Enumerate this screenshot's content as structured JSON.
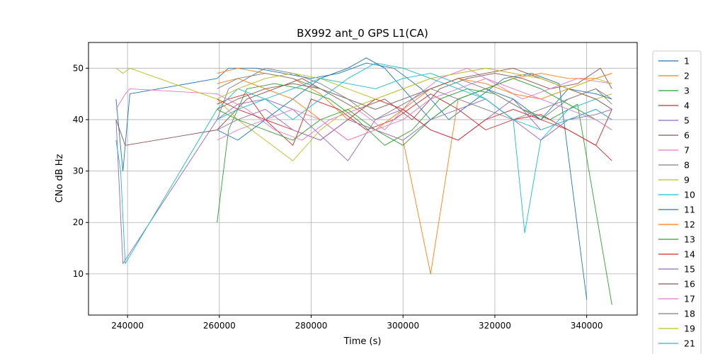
{
  "chart_data": {
    "type": "line",
    "title": "BX992 ant_0 GPS L1(CA)",
    "xlabel": "Time (s)",
    "ylabel": "CNo dB Hz",
    "xlim": [
      231500,
      351000
    ],
    "ylim": [
      2,
      55
    ],
    "xticks": [
      240000,
      260000,
      280000,
      300000,
      320000,
      340000
    ],
    "xtick_labels": [
      "240000",
      "260000",
      "280000",
      "300000",
      "320000",
      "340000"
    ],
    "yticks": [
      10,
      20,
      30,
      40,
      50
    ],
    "ytick_labels": [
      "10",
      "20",
      "30",
      "40",
      "50"
    ],
    "grid": true,
    "legend_position": "right, outside plot",
    "series": [
      {
        "name": "1",
        "color": "#1f77b4",
        "x": [
          237500,
          239000,
          240500,
          259500,
          262000,
          268000,
          274000,
          280000,
          286000,
          292000,
          298000,
          304000,
          310000,
          316000,
          322000,
          328000,
          334000,
          340000
        ],
        "y": [
          44,
          30,
          45,
          48,
          50,
          50,
          49,
          48,
          49,
          51,
          50,
          46,
          40,
          44,
          48,
          49,
          47,
          5
        ]
      },
      {
        "name": "2",
        "color": "#ff7f0e",
        "x": [
          259500,
          264000,
          270000,
          276000,
          282000,
          288000,
          294000,
          300000,
          306000,
          312000,
          318000,
          324000,
          330000,
          336000,
          342000,
          345500
        ],
        "y": [
          49,
          50,
          49,
          48,
          45,
          40,
          38,
          36,
          10,
          44,
          46,
          48,
          49,
          48,
          48,
          49
        ]
      },
      {
        "name": "3",
        "color": "#2ca02c",
        "x": [
          259500,
          262000,
          266000,
          272000,
          278000,
          284000,
          290000,
          296000,
          302000,
          308000,
          314000,
          320000,
          326000,
          332000,
          338000,
          345500
        ],
        "y": [
          20,
          38,
          46,
          47,
          46,
          44,
          40,
          35,
          38,
          44,
          46,
          45,
          42,
          40,
          43,
          4
        ]
      },
      {
        "name": "4",
        "color": "#d62728",
        "x": [
          259500,
          262000,
          266000,
          270000,
          276000,
          280000,
          286000,
          292000,
          298000,
          306000,
          312000,
          318000,
          324000,
          330000,
          336000,
          342000,
          345500
        ],
        "y": [
          43,
          44,
          45,
          40,
          35,
          44,
          42,
          38,
          40,
          45,
          42,
          38,
          40,
          41,
          38,
          35,
          42
        ]
      },
      {
        "name": "5",
        "color": "#9467bd",
        "x": [
          237500,
          239000,
          259500,
          264000,
          270000,
          276000,
          282000,
          288000,
          294000,
          300000,
          306000,
          312000,
          318000,
          324000,
          330000,
          336000,
          342000,
          345500
        ],
        "y": [
          40,
          12,
          40,
          43,
          44,
          42,
          37,
          32,
          40,
          42,
          38,
          36,
          40,
          44,
          38,
          40,
          41,
          42
        ]
      },
      {
        "name": "6",
        "color": "#8c564b",
        "x": [
          237500,
          239500,
          259500,
          266000,
          272000,
          278000,
          284000,
          290000,
          296000,
          302000,
          308000,
          314000,
          320000,
          326000,
          332000,
          338000,
          343000,
          345500
        ],
        "y": [
          40,
          35,
          38,
          44,
          46,
          48,
          45,
          42,
          44,
          40,
          46,
          48,
          49,
          48,
          46,
          47,
          50,
          46
        ]
      },
      {
        "name": "7",
        "color": "#e377c2",
        "x": [
          237500,
          239500,
          240500,
          259500,
          266000,
          272000,
          278000,
          284000,
          290000,
          296000,
          302000,
          308000,
          314000,
          320000,
          326000,
          332000,
          338000,
          345500
        ],
        "y": [
          42,
          45,
          46,
          45,
          42,
          38,
          36,
          40,
          42,
          38,
          44,
          48,
          50,
          47,
          44,
          46,
          48,
          47
        ]
      },
      {
        "name": "8",
        "color": "#7f7f7f",
        "x": [
          259500,
          262000,
          266000,
          270000,
          276000,
          282000,
          288000,
          294000,
          300000,
          306000,
          312000,
          318000,
          324000,
          330000,
          336000,
          342000,
          345500
        ],
        "y": [
          40,
          46,
          48,
          50,
          49,
          47,
          44,
          40,
          43,
          46,
          48,
          46,
          43,
          40,
          44,
          46,
          43
        ]
      },
      {
        "name": "9",
        "color": "#bcbd22",
        "x": [
          237500,
          239000,
          240500,
          259500,
          264000,
          270000,
          276000,
          282000,
          288000,
          294000,
          300000,
          306000,
          312000,
          318000,
          324000,
          330000,
          336000,
          342000,
          345500
        ],
        "y": [
          50,
          49,
          50,
          44,
          40,
          36,
          32,
          38,
          42,
          44,
          46,
          48,
          49,
          50,
          49,
          48,
          46,
          44,
          45
        ]
      },
      {
        "name": "10",
        "color": "#17becf",
        "x": [
          237500,
          238500,
          239500,
          259500,
          264000,
          270000,
          276000,
          282000,
          288000,
          294000,
          300000,
          306000,
          312000,
          318000,
          324000,
          326500,
          330000,
          336000,
          342000,
          345500
        ],
        "y": [
          36,
          30,
          12,
          42,
          46,
          44,
          40,
          44,
          48,
          51,
          50,
          48,
          46,
          44,
          40,
          18,
          36,
          42,
          44,
          42
        ]
      },
      {
        "name": "11",
        "color": "#1f77b4",
        "x": [
          259500,
          264000,
          270000,
          276000,
          282000,
          288000,
          292000,
          296000,
          300000,
          306000,
          312000,
          318000,
          324000,
          330000,
          336000,
          342000,
          345500
        ],
        "y": [
          38,
          36,
          40,
          44,
          48,
          50,
          52,
          50,
          46,
          40,
          44,
          46,
          44,
          40,
          46,
          45,
          44
        ]
      },
      {
        "name": "12",
        "color": "#ff7f0e",
        "x": [
          259500,
          264000,
          270000,
          276000,
          282000,
          288000,
          294000,
          300000,
          306000,
          312000,
          318000,
          324000,
          330000,
          336000,
          342000,
          345500
        ],
        "y": [
          47,
          48,
          46,
          44,
          40,
          36,
          38,
          42,
          46,
          48,
          47,
          45,
          44,
          46,
          48,
          49
        ]
      },
      {
        "name": "13",
        "color": "#2ca02c",
        "x": [
          259500,
          264000,
          270000,
          276000,
          282000,
          288000,
          294000,
          300000,
          306000,
          312000,
          318000,
          324000,
          330000,
          336000,
          342000,
          345500
        ],
        "y": [
          42,
          40,
          38,
          36,
          40,
          42,
          38,
          35,
          40,
          44,
          46,
          48,
          46,
          43,
          40,
          38
        ]
      },
      {
        "name": "14",
        "color": "#d62728",
        "x": [
          259500,
          264000,
          270000,
          276000,
          282000,
          288000,
          294000,
          300000,
          306000,
          312000,
          318000,
          324000,
          330000,
          336000,
          342000,
          345500
        ],
        "y": [
          44,
          42,
          40,
          38,
          36,
          40,
          44,
          42,
          38,
          36,
          40,
          42,
          40,
          38,
          35,
          32
        ]
      },
      {
        "name": "15",
        "color": "#9467bd",
        "x": [
          259500,
          264000,
          270000,
          276000,
          282000,
          288000,
          294000,
          300000,
          306000,
          312000,
          318000,
          324000,
          330000,
          336000,
          342000,
          345500
        ],
        "y": [
          38,
          40,
          42,
          38,
          36,
          40,
          38,
          36,
          40,
          42,
          44,
          40,
          36,
          40,
          42,
          40
        ]
      },
      {
        "name": "16",
        "color": "#8c564b",
        "x": [
          259500,
          264000,
          270000,
          276000,
          282000,
          288000,
          294000,
          300000,
          306000,
          312000,
          318000,
          324000,
          330000,
          336000,
          342000,
          345500
        ],
        "y": [
          42,
          44,
          46,
          47,
          46,
          44,
          42,
          44,
          46,
          48,
          49,
          50,
          48,
          46,
          44,
          42
        ]
      },
      {
        "name": "17",
        "color": "#e377c2",
        "x": [
          259500,
          264000,
          270000,
          276000,
          282000,
          288000,
          294000,
          300000,
          306000,
          312000,
          318000,
          324000,
          330000,
          336000,
          342000,
          345500
        ],
        "y": [
          36,
          38,
          40,
          42,
          40,
          36,
          38,
          40,
          44,
          46,
          48,
          46,
          44,
          42,
          40,
          38
        ]
      },
      {
        "name": "18",
        "color": "#7f7f7f",
        "x": [
          259500,
          264000,
          270000,
          276000,
          282000,
          288000,
          294000,
          300000,
          306000,
          312000,
          318000,
          324000,
          330000,
          336000,
          342000,
          345500
        ],
        "y": [
          46,
          48,
          49,
          48,
          46,
          44,
          42,
          44,
          46,
          44,
          42,
          40,
          42,
          44,
          46,
          44
        ]
      },
      {
        "name": "19",
        "color": "#bcbd22",
        "x": [
          259500,
          264000,
          270000,
          276000,
          282000,
          288000,
          294000,
          300000,
          306000,
          312000,
          318000,
          324000,
          330000,
          336000,
          342000,
          345500
        ],
        "y": [
          44,
          46,
          48,
          49,
          48,
          46,
          44,
          46,
          48,
          49,
          50,
          49,
          48,
          46,
          48,
          47
        ]
      },
      {
        "name": "21",
        "color": "#17becf",
        "x": [
          259500,
          264000,
          270000,
          276000,
          282000,
          288000,
          294000,
          300000,
          306000,
          312000,
          318000,
          324000,
          330000,
          336000,
          342000,
          345500
        ],
        "y": [
          40,
          42,
          44,
          46,
          48,
          47,
          46,
          48,
          49,
          47,
          44,
          40,
          38,
          40,
          42,
          40
        ]
      }
    ]
  }
}
